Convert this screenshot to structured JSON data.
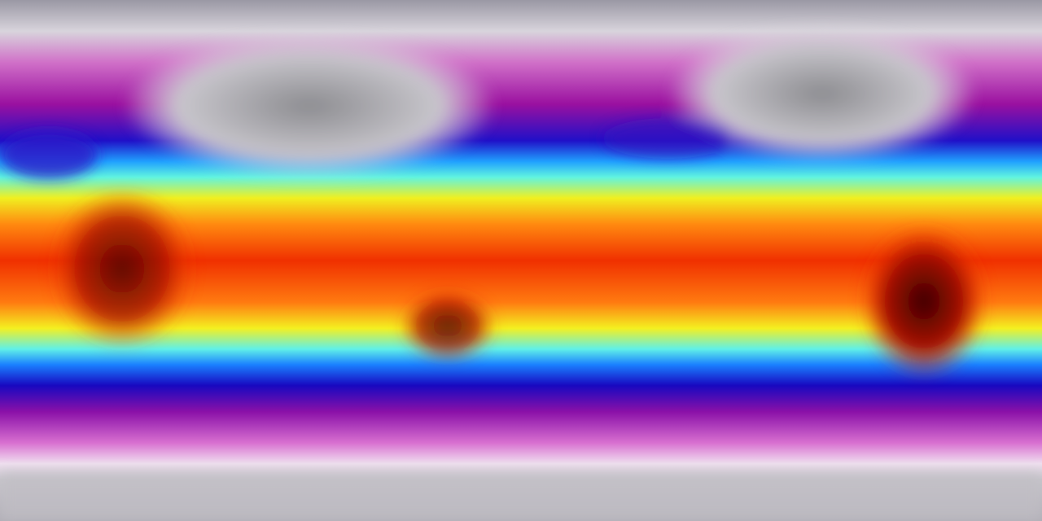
{
  "map": {
    "projection": "equirectangular",
    "colormap": [
      "#b9b9c0",
      "#e8d8ea",
      "#b0189c",
      "#1a0fc8",
      "#1e7cff",
      "#50f0f0",
      "#f6f61c",
      "#ff9a10",
      "#ee2a00",
      "#b81000",
      "#3a0000"
    ],
    "land_hot_color": "#5a0500",
    "polar_color": "#c4c2c8"
  }
}
